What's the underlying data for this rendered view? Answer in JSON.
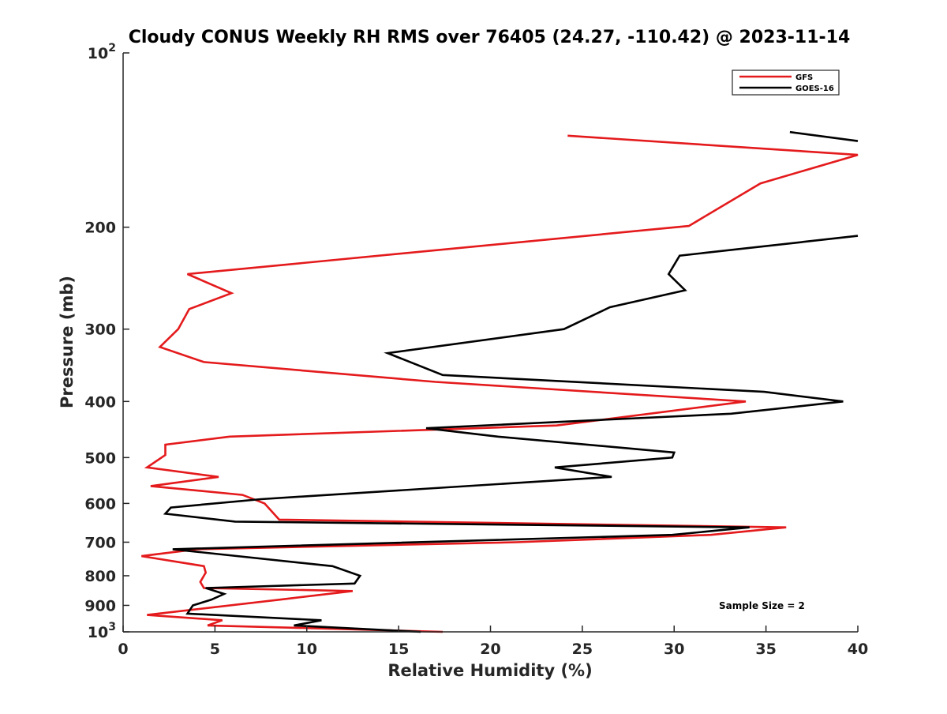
{
  "chart_data": {
    "type": "line",
    "title": "Cloudy CONUS Weekly RH RMS over 76405 (24.27, -110.42) @ 2023-11-14",
    "xlabel": "Relative Humidity (%)",
    "ylabel": "Pressure (mb)",
    "xlim": [
      0,
      40
    ],
    "ylim": [
      100,
      1000
    ],
    "yscale": "log",
    "y_reversed": true,
    "grid": false,
    "legend_position": "top-right",
    "x_ticks": [
      "0",
      "5",
      "10",
      "15",
      "20",
      "25",
      "30",
      "35",
      "40"
    ],
    "y_ticks": [
      {
        "value": 100,
        "base": "10",
        "exp": "2"
      },
      {
        "value": 200,
        "label": "200"
      },
      {
        "value": 300,
        "label": "300"
      },
      {
        "value": 400,
        "label": "400"
      },
      {
        "value": 500,
        "label": "500"
      },
      {
        "value": 600,
        "label": "600"
      },
      {
        "value": 700,
        "label": "700"
      },
      {
        "value": 800,
        "label": "800"
      },
      {
        "value": 900,
        "label": "900"
      },
      {
        "value": 1000,
        "base": "10",
        "exp": "3"
      }
    ],
    "annotation": "Sample Size = 2",
    "series": [
      {
        "name": "GFS",
        "color": "#e41a1c",
        "points": [
          [
            24.2,
            139
          ],
          [
            40.0,
            150
          ],
          [
            34.7,
            168
          ],
          [
            30.8,
            199
          ],
          [
            3.5,
            241
          ],
          [
            5.9,
            260
          ],
          [
            3.6,
            277
          ],
          [
            3.0,
            300
          ],
          [
            2.0,
            322
          ],
          [
            4.4,
            342
          ],
          [
            17.0,
            370
          ],
          [
            33.9,
            400
          ],
          [
            23.6,
            440
          ],
          [
            5.8,
            460
          ],
          [
            2.3,
            475
          ],
          [
            2.3,
            495
          ],
          [
            1.3,
            520
          ],
          [
            5.2,
            540
          ],
          [
            1.5,
            560
          ],
          [
            6.5,
            580
          ],
          [
            7.7,
            600
          ],
          [
            8.5,
            640
          ],
          [
            36.1,
            660
          ],
          [
            32.0,
            680
          ],
          [
            21.4,
            700
          ],
          [
            4.0,
            720
          ],
          [
            1.0,
            740
          ],
          [
            4.4,
            770
          ],
          [
            4.5,
            790
          ],
          [
            4.2,
            820
          ],
          [
            4.4,
            840
          ],
          [
            12.5,
            850
          ],
          [
            8.5,
            880
          ],
          [
            1.3,
            935
          ],
          [
            5.4,
            955
          ],
          [
            4.6,
            975
          ],
          [
            10.0,
            985
          ],
          [
            17.4,
            1000
          ]
        ]
      },
      {
        "name": "GOES-16",
        "color": "#000000",
        "points": [
          [
            36.3,
            137
          ],
          [
            40.0,
            142
          ],
          null,
          [
            40.0,
            207
          ],
          [
            30.3,
            224
          ],
          [
            29.7,
            241
          ],
          [
            30.6,
            257
          ],
          [
            26.5,
            275
          ],
          [
            24.0,
            300
          ],
          [
            14.4,
            330
          ],
          [
            17.4,
            360
          ],
          [
            34.9,
            385
          ],
          [
            39.2,
            400
          ],
          [
            33.1,
            420
          ],
          [
            16.5,
            445
          ],
          [
            20.4,
            460
          ],
          [
            30.0,
            490
          ],
          [
            29.9,
            500
          ],
          [
            23.5,
            520
          ],
          [
            26.6,
            540
          ],
          [
            7.5,
            590
          ],
          [
            2.6,
            610
          ],
          [
            2.3,
            625
          ],
          [
            6.1,
            645
          ],
          [
            34.1,
            660
          ],
          [
            29.9,
            680
          ],
          [
            2.7,
            720
          ],
          [
            11.4,
            770
          ],
          [
            12.9,
            800
          ],
          [
            12.6,
            825
          ],
          [
            4.5,
            840
          ],
          [
            5.5,
            860
          ],
          [
            4.8,
            880
          ],
          [
            3.8,
            900
          ],
          [
            3.5,
            930
          ],
          [
            10.8,
            955
          ],
          [
            9.3,
            975
          ],
          [
            16.2,
            1000
          ]
        ]
      }
    ]
  }
}
